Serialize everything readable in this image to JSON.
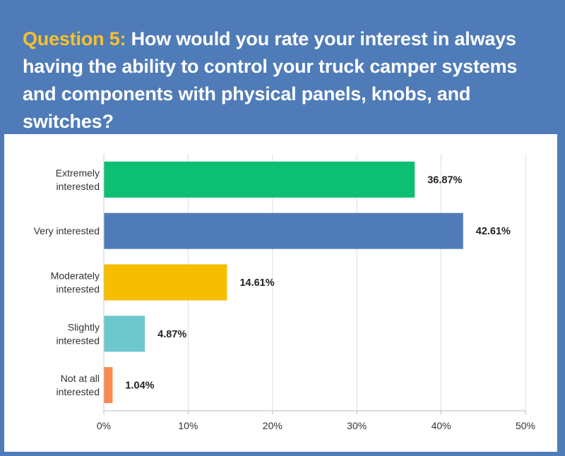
{
  "header": {
    "question_prefix": "Question 5:",
    "question_text": "How would you rate your interest in always having the ability to control your truck camper systems and components with physical panels, knobs, and switches?"
  },
  "colors": {
    "background": "#4f7cb8",
    "accent": "#f7c12e",
    "bars": [
      "#0dbf72",
      "#4f7cb8",
      "#f6be00",
      "#6cc8cc",
      "#f88a4f"
    ]
  },
  "chart_data": {
    "type": "bar",
    "orientation": "horizontal",
    "categories": [
      [
        "Extremely",
        "interested"
      ],
      [
        "Very interested"
      ],
      [
        "Moderately",
        "interested"
      ],
      [
        "Slightly",
        "interested"
      ],
      [
        "Not at all",
        "interested"
      ]
    ],
    "values": [
      36.87,
      42.61,
      14.61,
      4.87,
      1.04
    ],
    "value_labels": [
      "36.87%",
      "42.61%",
      "14.61%",
      "4.87%",
      "1.04%"
    ],
    "xlim": [
      0,
      50
    ],
    "xticks": [
      0,
      10,
      20,
      30,
      40,
      50
    ],
    "xtick_labels": [
      "0%",
      "10%",
      "20%",
      "30%",
      "40%",
      "50%"
    ],
    "grid": true
  }
}
